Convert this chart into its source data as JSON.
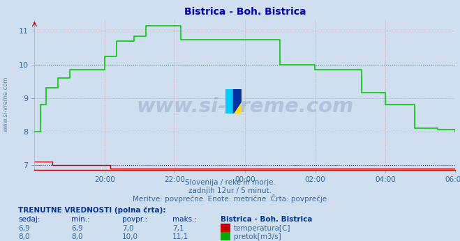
{
  "title": "Bistrica - Boh. Bistrica",
  "title_color": "#0000cc",
  "bg_color": "#d0dff0",
  "plot_bg_color": "#d0dff0",
  "watermark": "www.si-vreme.com",
  "subtitle_lines": [
    "Slovenija / reke in morje.",
    "zadnjih 12ur / 5 minut.",
    "Meritve: povprečne  Enote: metrične  Črta: povprečje"
  ],
  "table_header": "TRENUTNE VREDNOSTI (polna črta):",
  "table_cols": [
    "sedaj:",
    "min.:",
    "povpr.:",
    "maks.:"
  ],
  "table_data": [
    {
      "sedaj": "6,9",
      "min": "6,9",
      "povpr": "7,0",
      "maks": "7,1",
      "color": "#cc0000",
      "label": "temperatura[C]"
    },
    {
      "sedaj": "8,0",
      "min": "8,0",
      "povpr": "10,0",
      "maks": "11,1",
      "color": "#00aa00",
      "label": "pretok[m3/s]"
    }
  ],
  "station_label": "Bistrica - Boh. Bistrica",
  "x_ticks_labels": [
    "20:00",
    "22:00",
    "00:00",
    "02:00",
    "04:00",
    "06:00"
  ],
  "x_ticks_pos": [
    24,
    48,
    72,
    96,
    120,
    144
  ],
  "total_points": 145,
  "ylim_min": 6.85,
  "ylim_max": 11.35,
  "y_ticks": [
    7,
    8,
    9,
    10,
    11
  ],
  "grid_color": "#cc9999",
  "temp_color": "#cc0000",
  "flow_color": "#00cc00",
  "temp_avg": 7.0,
  "flow_avg": 10.0,
  "temp_dotted_color": "#cc0000",
  "flow_dotted_color": "#00cc00",
  "logo_colors": [
    "#00ccff",
    "#ffdd00",
    "#0033aa"
  ],
  "watermark_color": "#1a4488",
  "watermark_alpha": 0.18,
  "left_label_color": "#336699"
}
